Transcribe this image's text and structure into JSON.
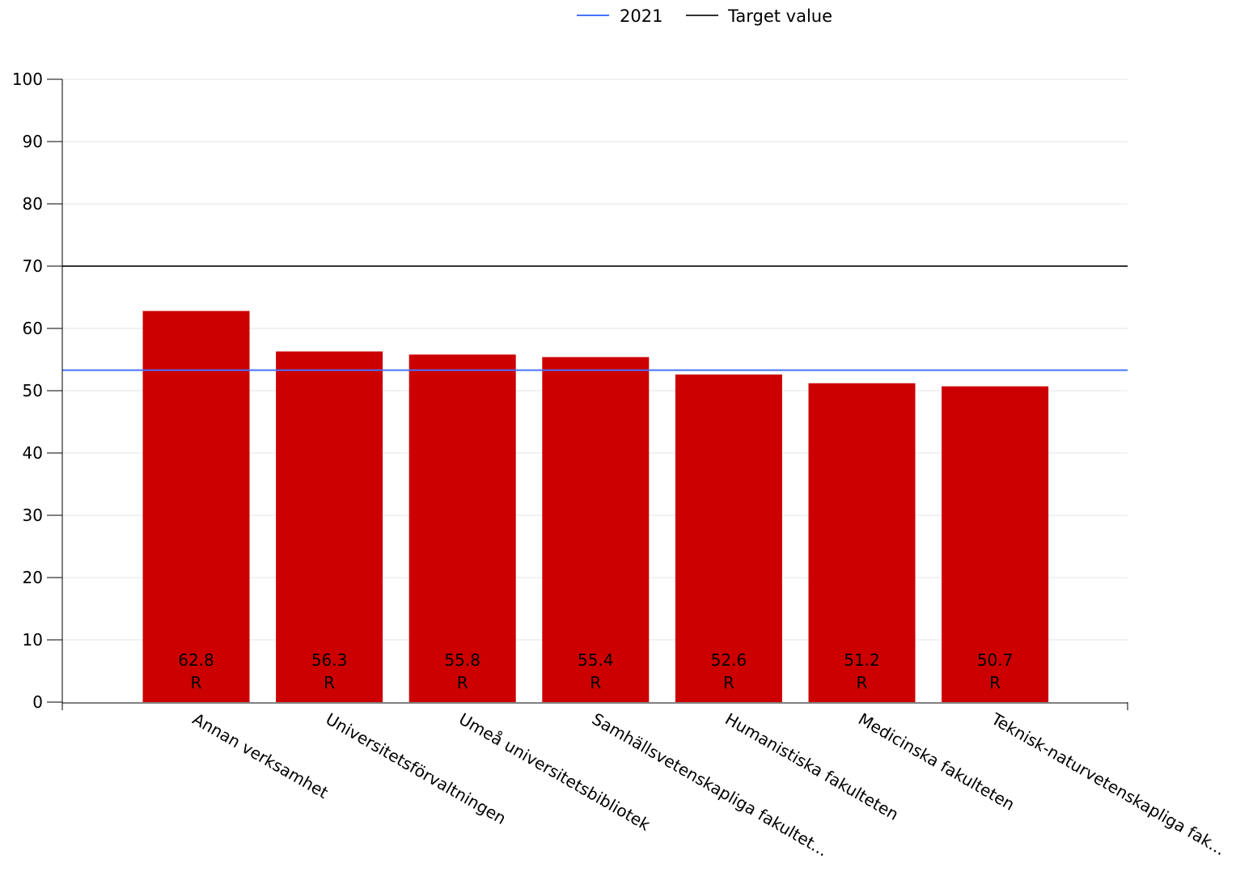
{
  "chart_data": {
    "type": "bar",
    "categories": [
      "Annan verksamhet",
      "Universitetsförvaltningen",
      "Umeå universitetsbibliotek",
      "Samhällsvetenskapliga fakultet...",
      "Humanistiska fakulteten",
      "Medicinska fakulteten",
      "Teknisk-naturvetenskapliga fak..."
    ],
    "values": [
      62.8,
      56.3,
      55.8,
      55.4,
      52.6,
      51.2,
      50.7
    ],
    "value_labels": [
      "62.8",
      "56.3",
      "55.8",
      "55.4",
      "52.6",
      "51.2",
      "50.7"
    ],
    "bar_sublabel": "R",
    "yticks": [
      "0",
      "10",
      "20",
      "30",
      "40",
      "50",
      "60",
      "70",
      "80",
      "90",
      "100"
    ],
    "ylim": [
      0,
      100
    ],
    "grid": true,
    "legend_position": "top-center",
    "reference_lines": [
      {
        "name": "2021",
        "value": 53.3,
        "color": "#4472ff"
      },
      {
        "name": "Target value",
        "value": 70,
        "color": "#333333"
      }
    ],
    "bar_color": "#cc0000",
    "grid_color": "#e6e6e6",
    "axis_color": "#000000",
    "xlabel": "",
    "ylabel": "",
    "title": ""
  }
}
